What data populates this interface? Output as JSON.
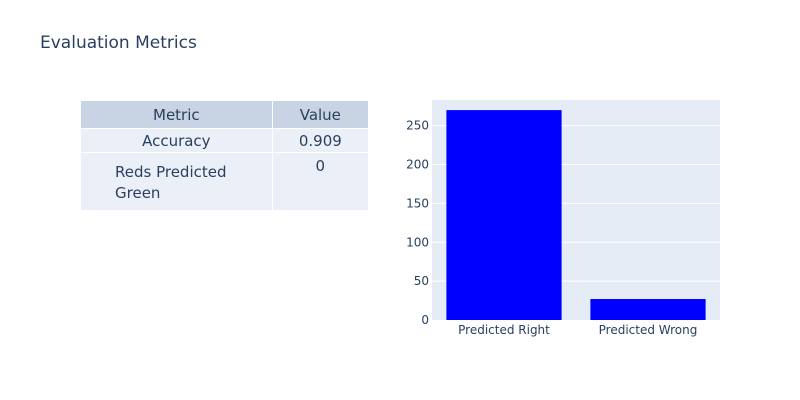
{
  "title": "Evaluation Metrics",
  "table": {
    "headers": [
      "Metric",
      "Value"
    ],
    "rows": [
      {
        "metric": "Accuracy",
        "value": "0.909"
      },
      {
        "metric": "Reds Predicted Green",
        "value": "0"
      }
    ]
  },
  "colors": {
    "bar": "#0000ff",
    "plot_bg": "#e5ecf6",
    "table_header_bg": "#c8d4e3",
    "table_cell_bg": "#ebf0f8",
    "text": "#2a3f5f"
  },
  "chart_data": {
    "type": "bar",
    "categories": [
      "Predicted Right",
      "Predicted Wrong"
    ],
    "values": [
      270,
      27
    ],
    "ylim": [
      0,
      283
    ],
    "yticks": [
      0,
      50,
      100,
      150,
      200,
      250
    ],
    "grid": true,
    "title": "",
    "xlabel": "",
    "ylabel": ""
  }
}
